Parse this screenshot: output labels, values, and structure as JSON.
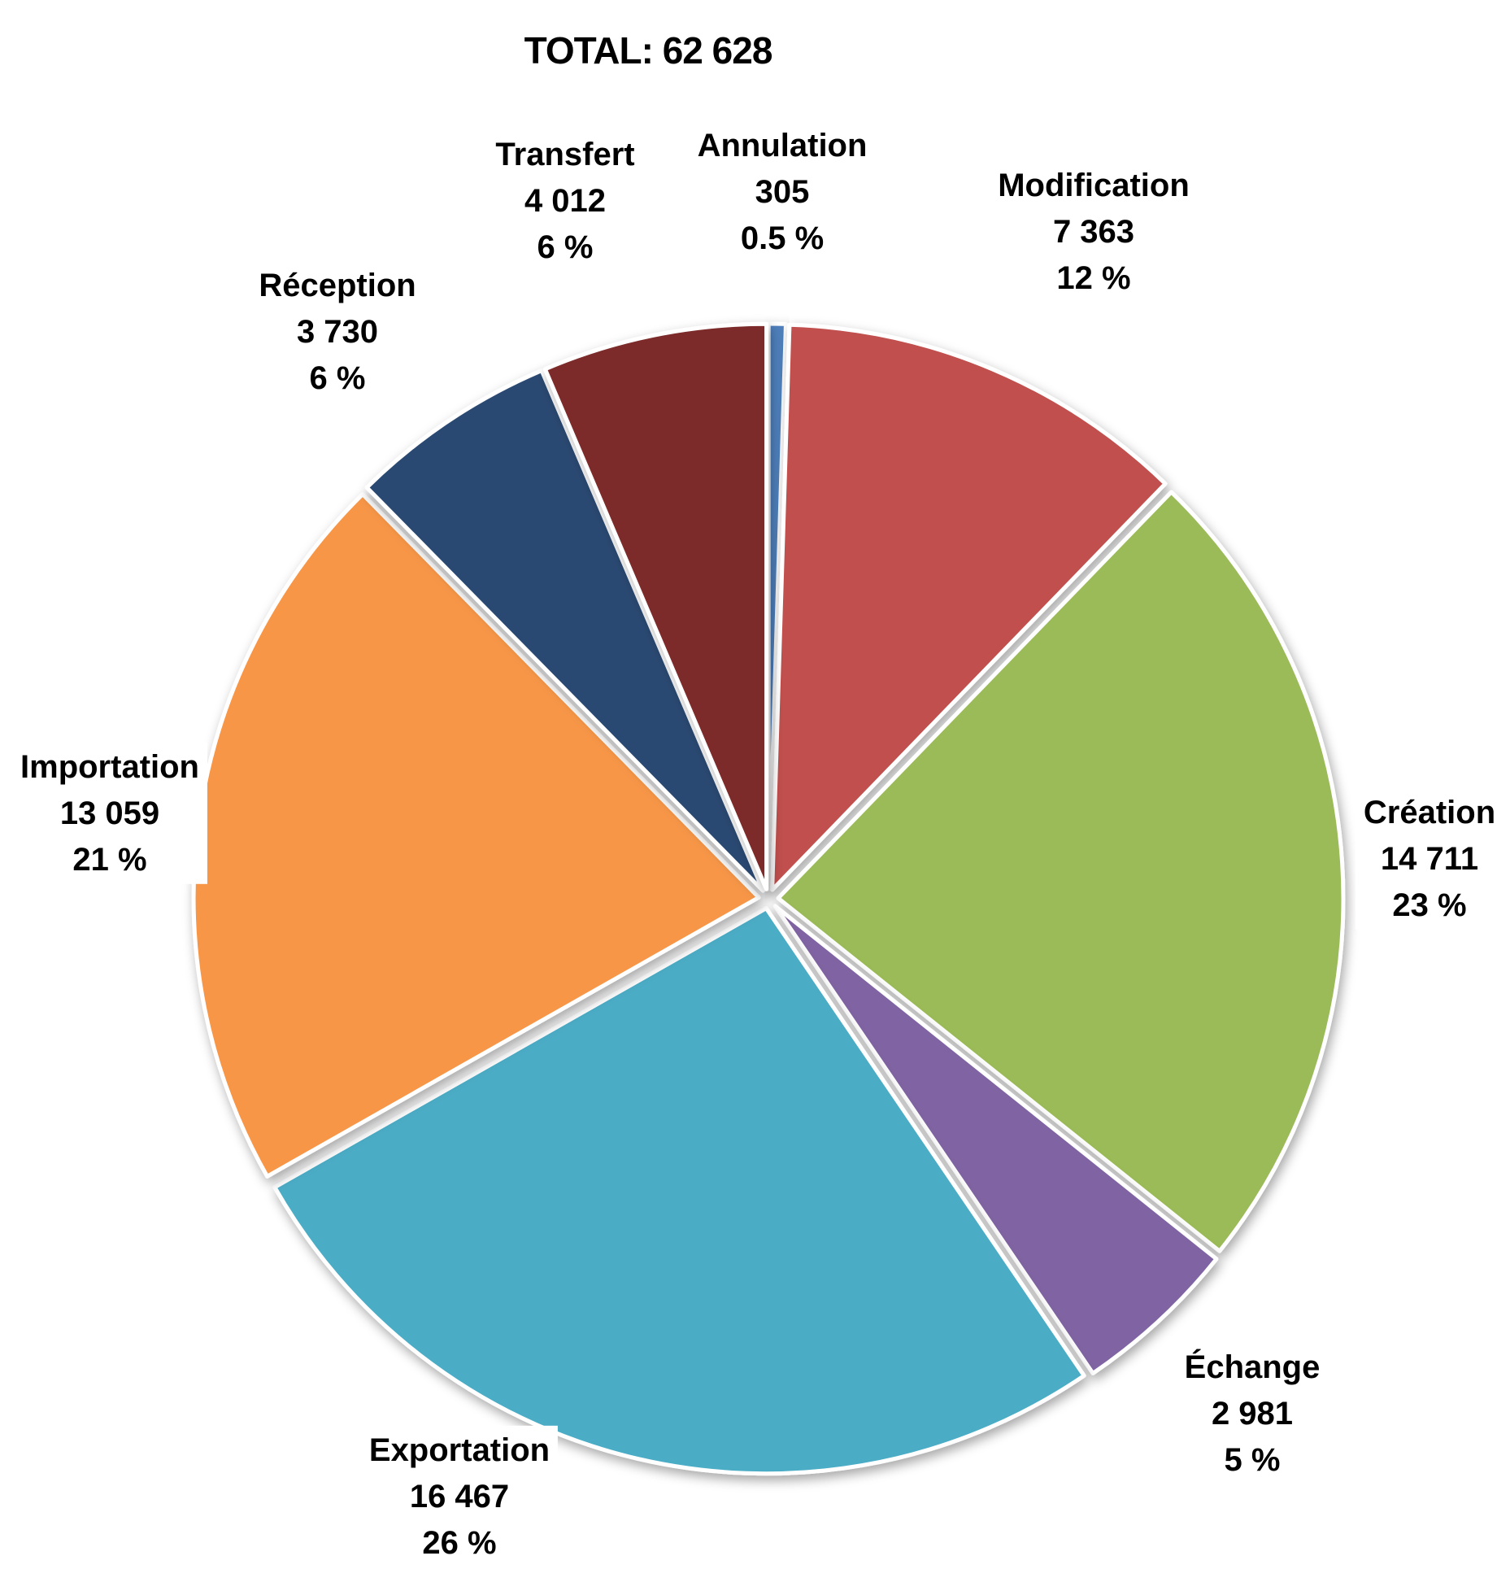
{
  "title": "TOTAL: 62 628",
  "chart_data": {
    "type": "pie",
    "title": "TOTAL: 62 628",
    "total": 62628,
    "start_angle_deg": -90,
    "direction": "clockwise",
    "legend_position": "none",
    "labels_outside": true,
    "slices": [
      {
        "name": "Annulation",
        "value": 305,
        "value_label": "305",
        "pct_label": "0.5 %",
        "color": "#4F81BD"
      },
      {
        "name": "Modification",
        "value": 7363,
        "value_label": "7 363",
        "pct_label": "12 %",
        "color": "#C0504D"
      },
      {
        "name": "Création",
        "value": 14711,
        "value_label": "14 711",
        "pct_label": "23 %",
        "color": "#9BBB59"
      },
      {
        "name": "Échange",
        "value": 2981,
        "value_label": "2 981",
        "pct_label": "5 %",
        "color": "#8064A2"
      },
      {
        "name": "Exportation",
        "value": 16467,
        "value_label": "16 467",
        "pct_label": "26 %",
        "color": "#4BACC6"
      },
      {
        "name": "Importation",
        "value": 13059,
        "value_label": "13 059",
        "pct_label": "21 %",
        "color": "#F79646"
      },
      {
        "name": "Réception",
        "value": 3730,
        "value_label": "3 730",
        "pct_label": "6 %",
        "color": "#2C4A72"
      },
      {
        "name": "Transfert",
        "value": 4012,
        "value_label": "4 012",
        "pct_label": "6 %",
        "color": "#7B2C29"
      }
    ]
  }
}
